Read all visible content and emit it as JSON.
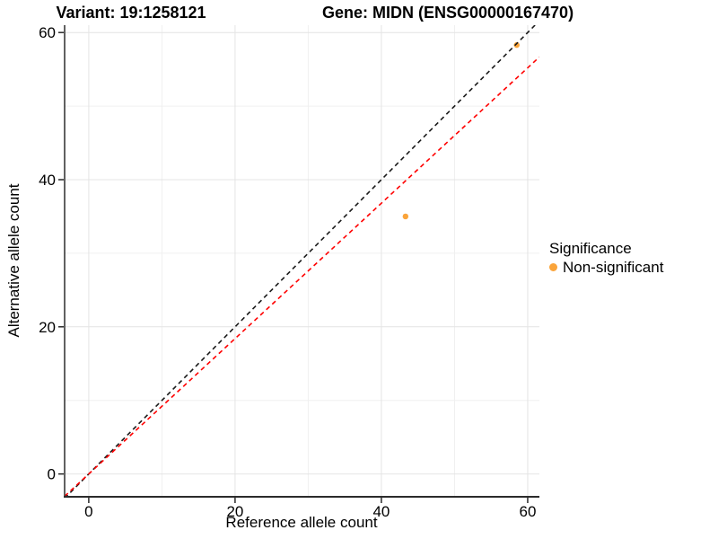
{
  "chart_data": {
    "type": "scatter",
    "title_left": "Variant: 19:1258121",
    "title_right": "Gene: MIDN (ENSG00000167470)",
    "xlabel": "Reference allele count",
    "ylabel": "Alternative allele count",
    "xlim": [
      -3.3,
      61.6
    ],
    "ylim": [
      -3.1,
      61.0
    ],
    "x_major_ticks": [
      0,
      20,
      40,
      60
    ],
    "y_major_ticks": [
      0,
      20,
      40,
      60
    ],
    "x_minor_ticks": [
      10,
      30,
      50
    ],
    "y_minor_ticks": [
      10,
      30,
      50
    ],
    "grid": true,
    "points": [
      {
        "x": 43.3,
        "y": 35.0,
        "significance": "Non-significant"
      },
      {
        "x": 58.5,
        "y": 58.3,
        "significance": "Non-significant"
      }
    ],
    "lines": [
      {
        "name": "identity-line",
        "slope": 1.0,
        "intercept": 0,
        "color": "#1a1a1a"
      },
      {
        "name": "fitted-line",
        "slope": 0.92,
        "intercept": 0,
        "color": "#ff0000"
      }
    ],
    "legend": {
      "position": "right",
      "title": "Significance",
      "items": [
        {
          "label": "Non-significant",
          "color": "#faa43a"
        }
      ]
    },
    "colors": {
      "point": "#faa43a",
      "grid_major": "#e4e4e4",
      "grid_minor": "#f0f0f0",
      "axis_line": "#2b2b2b",
      "text": "#000000"
    }
  }
}
